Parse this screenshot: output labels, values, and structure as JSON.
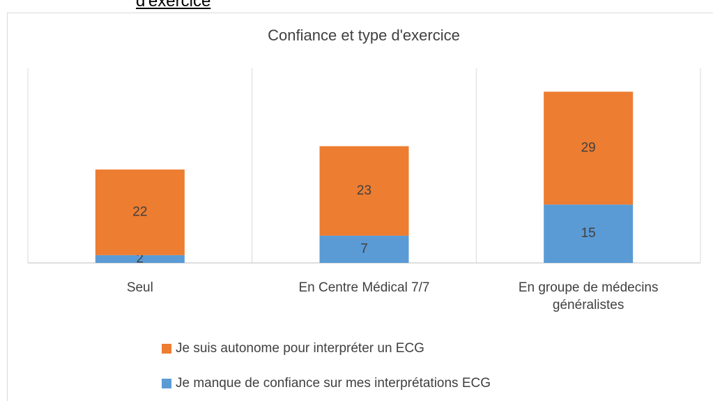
{
  "heading_fragment": "d'exercice",
  "chart_data": {
    "type": "stacked_bar",
    "title": "Confiance et type d'exercice",
    "categories": [
      "Seul",
      "En Centre Médical 7/7",
      "En groupe de médecins généralistes"
    ],
    "series": [
      {
        "name": "Je manque de confiance sur mes interprétations ECG",
        "color": "#5b9bd5",
        "values": [
          2,
          7,
          15
        ]
      },
      {
        "name": "Je suis autonome pour interpréter un ECG",
        "color": "#ed7d31",
        "values": [
          22,
          23,
          29
        ]
      }
    ],
    "ylim": [
      0,
      50
    ],
    "legend": "bottom"
  }
}
